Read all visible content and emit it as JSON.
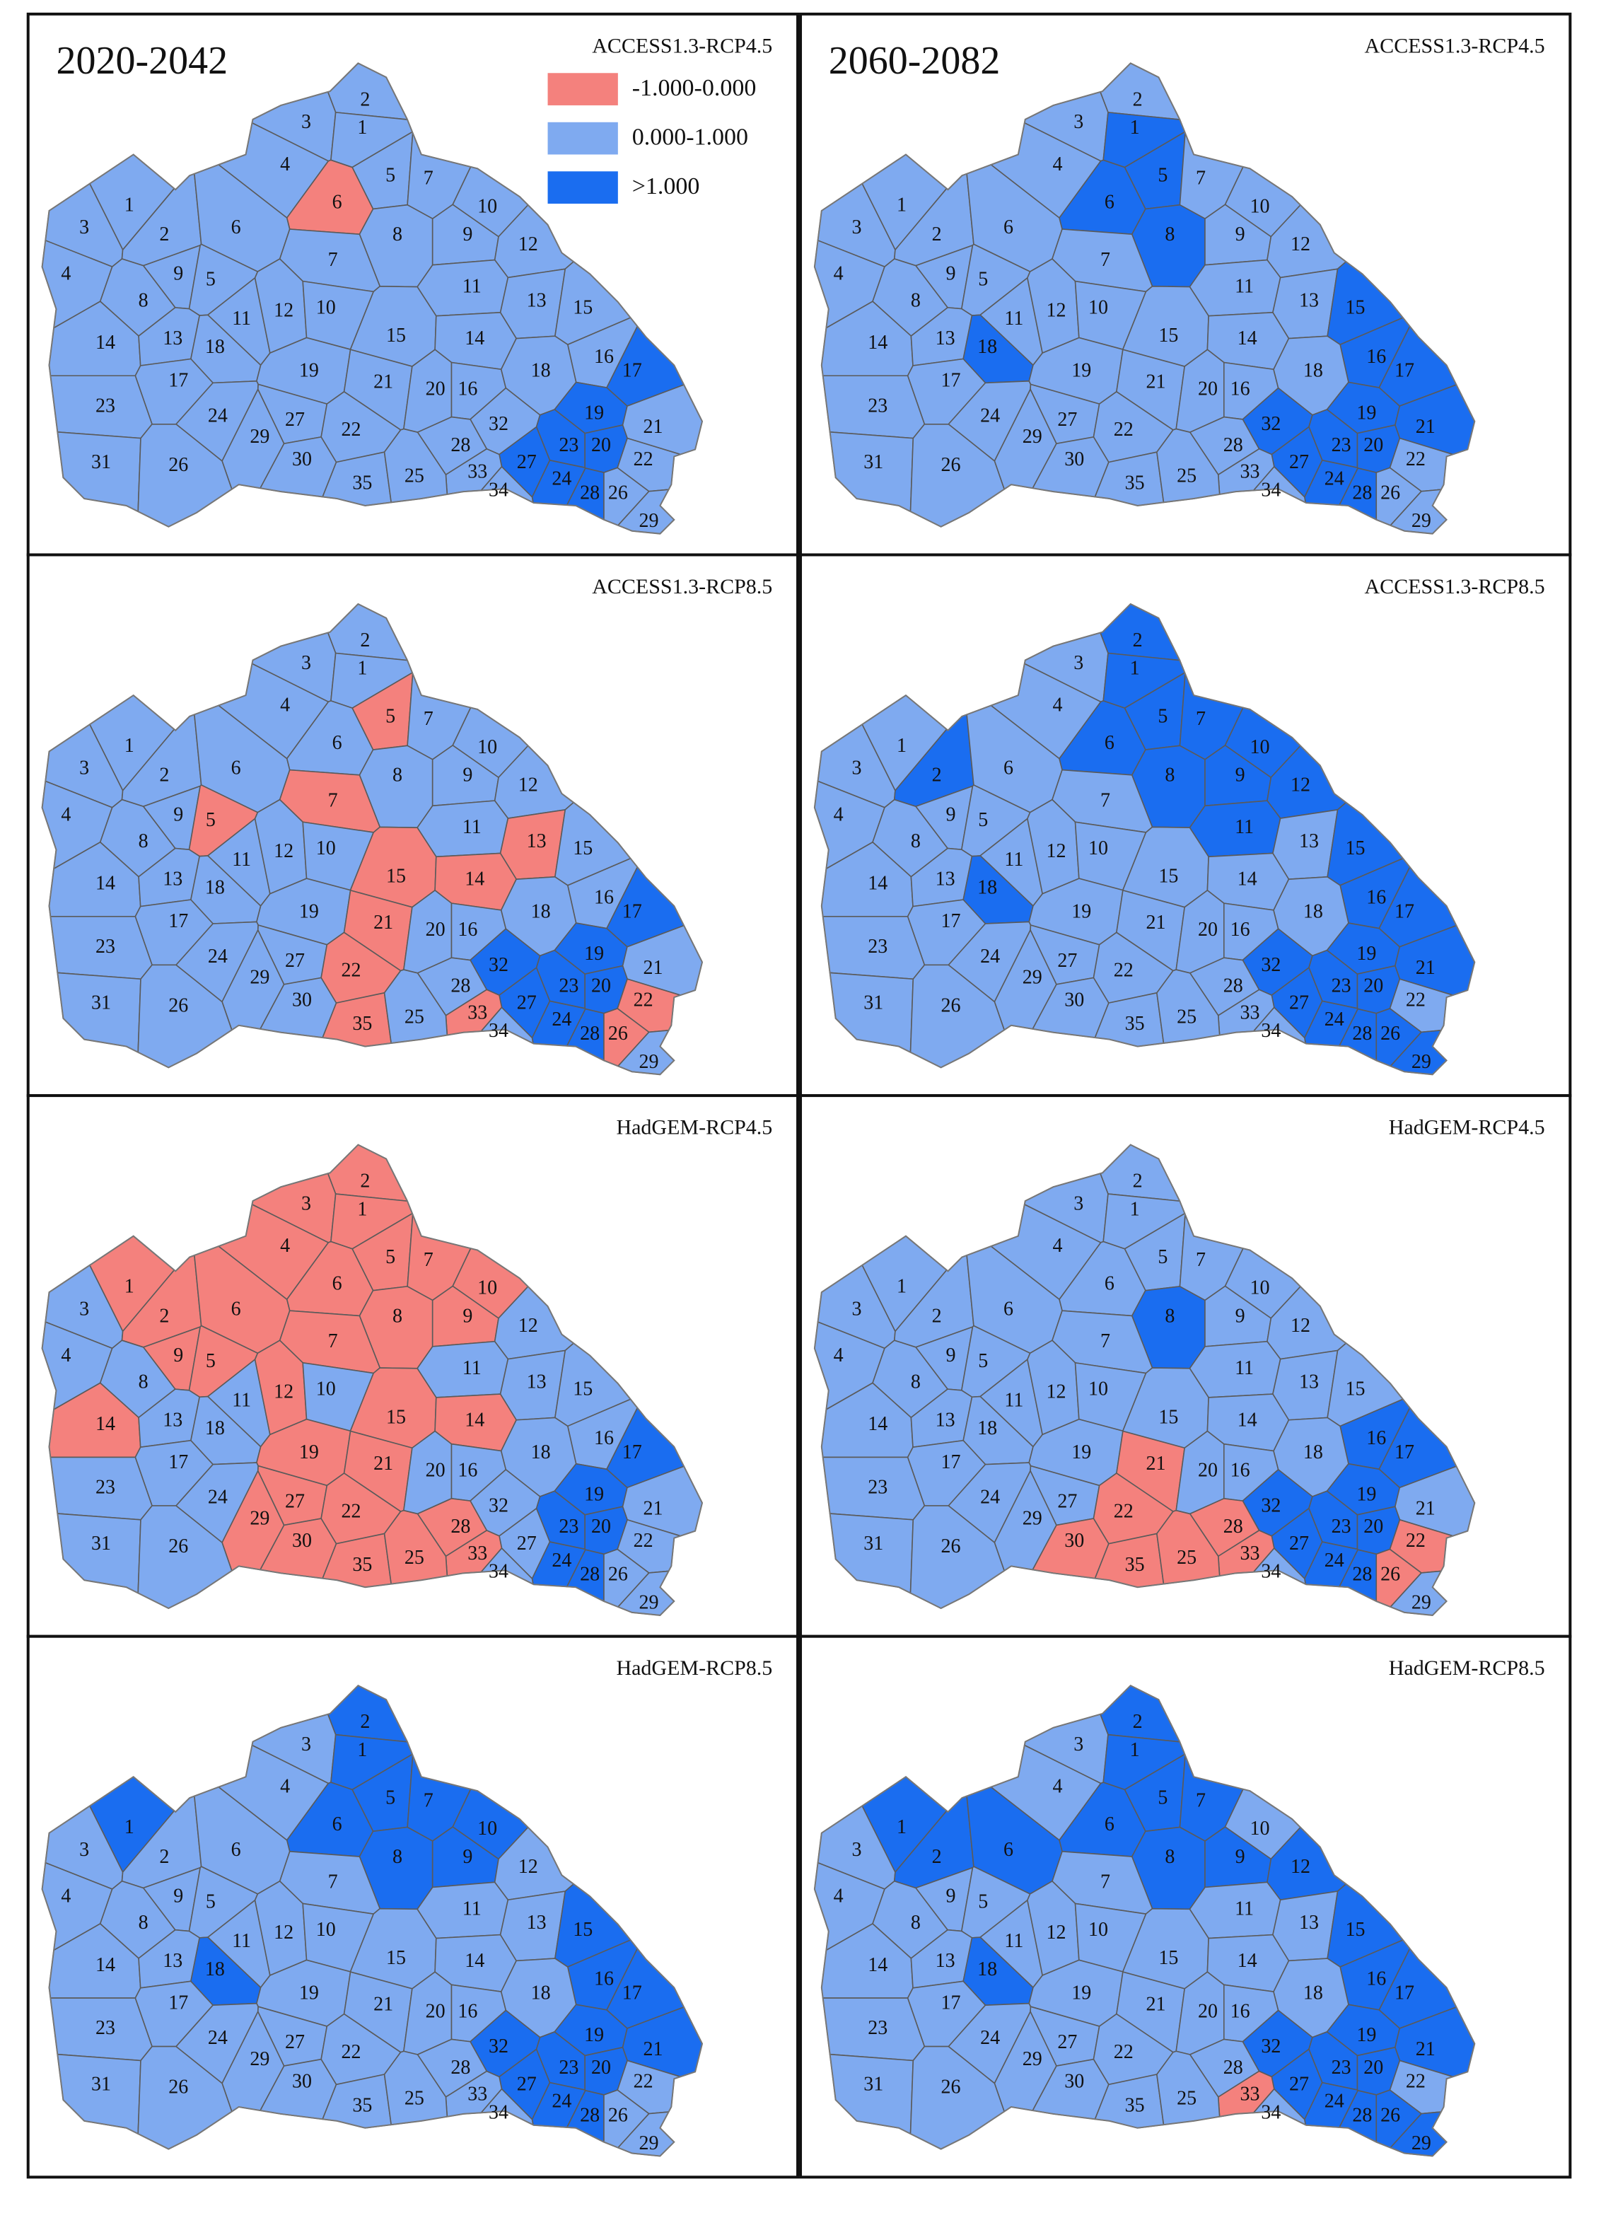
{
  "legend": {
    "items": [
      {
        "label": "-1.000-0.000",
        "color": "#f4817d"
      },
      {
        "label": "0.000-1.000",
        "color": "#7faaf0"
      },
      {
        "label": ">1.000",
        "color": "#1a6df0"
      }
    ]
  },
  "subbasin_labels": [
    "2",
    "3",
    "1",
    "4",
    "5",
    "7",
    "6",
    "10",
    "1",
    "8",
    "9",
    "12",
    "3",
    "2",
    "6",
    "7",
    "4",
    "9",
    "5",
    "8",
    "11",
    "13",
    "15",
    "11",
    "12",
    "10",
    "14",
    "13",
    "18",
    "15",
    "14",
    "16",
    "17",
    "19",
    "21",
    "20",
    "16",
    "18",
    "17",
    "23",
    "24",
    "27",
    "19",
    "21",
    "29",
    "22",
    "32",
    "31",
    "26",
    "30",
    "28",
    "23",
    "20",
    "22",
    "27",
    "33",
    "35",
    "25",
    "24",
    "34",
    "28",
    "26",
    "29"
  ],
  "panels": [
    {
      "period": "2020-2042",
      "scenario": "ACCESS1.3-RCP4.5",
      "classes": [
        1,
        1,
        1,
        1,
        1,
        1,
        0,
        1,
        1,
        1,
        1,
        1,
        1,
        1,
        1,
        1,
        1,
        1,
        1,
        1,
        1,
        1,
        1,
        1,
        1,
        1,
        1,
        1,
        1,
        1,
        1,
        1,
        2,
        1,
        1,
        1,
        1,
        1,
        1,
        1,
        1,
        1,
        2,
        1,
        1,
        1,
        1,
        1,
        1,
        1,
        1,
        2,
        2,
        1,
        2,
        1,
        1,
        1,
        2,
        1,
        2,
        1,
        1
      ]
    },
    {
      "period": "2060-2082",
      "scenario": "ACCESS1.3-RCP4.5",
      "classes": [
        1,
        1,
        2,
        1,
        2,
        1,
        2,
        1,
        1,
        2,
        1,
        1,
        1,
        1,
        1,
        1,
        1,
        1,
        1,
        1,
        1,
        1,
        2,
        1,
        1,
        1,
        1,
        1,
        2,
        1,
        1,
        2,
        2,
        1,
        1,
        1,
        1,
        1,
        1,
        1,
        1,
        1,
        2,
        2,
        1,
        1,
        2,
        1,
        1,
        1,
        1,
        2,
        2,
        1,
        2,
        1,
        1,
        1,
        2,
        1,
        2,
        1,
        1
      ]
    },
    {
      "scenario": "ACCESS1.3-RCP8.5",
      "classes": [
        1,
        1,
        1,
        1,
        0,
        1,
        1,
        1,
        1,
        1,
        1,
        1,
        1,
        1,
        1,
        0,
        1,
        1,
        0,
        1,
        1,
        0,
        1,
        1,
        1,
        1,
        1,
        1,
        1,
        0,
        0,
        1,
        2,
        1,
        0,
        1,
        1,
        1,
        1,
        1,
        1,
        1,
        2,
        1,
        1,
        0,
        2,
        1,
        1,
        1,
        1,
        2,
        2,
        0,
        2,
        0,
        0,
        1,
        2,
        1,
        2,
        0,
        1
      ]
    },
    {
      "scenario": "ACCESS1.3-RCP8.5",
      "classes": [
        2,
        1,
        2,
        1,
        2,
        2,
        2,
        2,
        1,
        2,
        2,
        2,
        1,
        2,
        1,
        1,
        1,
        1,
        1,
        1,
        2,
        1,
        2,
        1,
        1,
        1,
        1,
        1,
        2,
        1,
        1,
        2,
        2,
        1,
        1,
        1,
        1,
        1,
        1,
        1,
        1,
        1,
        2,
        2,
        1,
        1,
        2,
        1,
        1,
        1,
        1,
        2,
        2,
        1,
        2,
        1,
        1,
        1,
        2,
        1,
        2,
        2,
        2
      ]
    },
    {
      "scenario": "HadGEM-RCP4.5",
      "classes": [
        0,
        0,
        0,
        0,
        0,
        0,
        0,
        0,
        0,
        0,
        0,
        1,
        1,
        0,
        0,
        0,
        1,
        0,
        0,
        1,
        1,
        1,
        1,
        1,
        0,
        1,
        0,
        1,
        1,
        0,
        0,
        1,
        2,
        0,
        0,
        1,
        1,
        1,
        1,
        1,
        1,
        0,
        2,
        1,
        0,
        0,
        1,
        1,
        1,
        0,
        0,
        2,
        2,
        1,
        1,
        0,
        0,
        0,
        2,
        1,
        2,
        1,
        1
      ]
    },
    {
      "scenario": "HadGEM-RCP4.5",
      "classes": [
        1,
        1,
        1,
        1,
        1,
        1,
        1,
        1,
        1,
        2,
        1,
        1,
        1,
        1,
        1,
        1,
        1,
        1,
        1,
        1,
        1,
        1,
        1,
        1,
        1,
        1,
        1,
        1,
        1,
        1,
        1,
        2,
        2,
        1,
        0,
        1,
        1,
        1,
        1,
        1,
        1,
        1,
        2,
        1,
        1,
        0,
        2,
        1,
        1,
        0,
        0,
        2,
        2,
        0,
        2,
        0,
        0,
        0,
        2,
        1,
        2,
        0,
        1
      ]
    },
    {
      "scenario": "HadGEM-RCP8.5",
      "classes": [
        2,
        1,
        2,
        1,
        2,
        2,
        2,
        2,
        2,
        2,
        2,
        1,
        1,
        1,
        1,
        1,
        1,
        1,
        1,
        1,
        1,
        1,
        2,
        1,
        1,
        1,
        1,
        1,
        2,
        1,
        1,
        2,
        2,
        1,
        1,
        1,
        1,
        1,
        1,
        1,
        1,
        1,
        2,
        2,
        1,
        1,
        2,
        1,
        1,
        1,
        1,
        2,
        2,
        1,
        2,
        1,
        1,
        1,
        2,
        1,
        2,
        1,
        1
      ]
    },
    {
      "scenario": "HadGEM-RCP8.5",
      "classes": [
        2,
        1,
        2,
        1,
        2,
        2,
        2,
        1,
        2,
        2,
        2,
        2,
        1,
        2,
        2,
        1,
        1,
        1,
        1,
        1,
        1,
        1,
        2,
        1,
        1,
        1,
        1,
        1,
        2,
        1,
        1,
        2,
        2,
        1,
        1,
        1,
        1,
        1,
        1,
        1,
        1,
        1,
        2,
        2,
        1,
        1,
        2,
        1,
        1,
        1,
        1,
        2,
        2,
        1,
        2,
        0,
        1,
        1,
        2,
        1,
        2,
        2,
        2
      ]
    }
  ]
}
